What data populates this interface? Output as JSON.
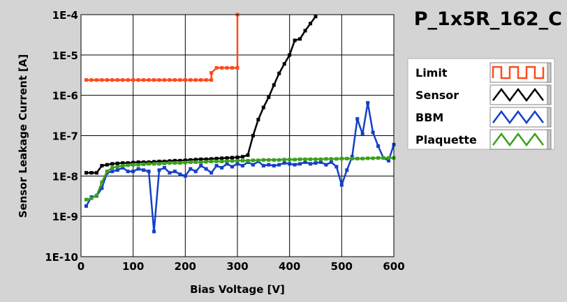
{
  "window": {
    "title": "P_1x5R_162_C"
  },
  "colors": {
    "background": "#d4d4d4",
    "plot_background": "#ffffff",
    "grid": "#000000",
    "limit": "#ff4a1c",
    "sensor": "#000000",
    "bbm": "#1440c8",
    "plaquette": "#3ca01c"
  },
  "chart_data": {
    "type": "line",
    "title": "P_1x5R_162_C",
    "xlabel": "Bias Voltage [V]",
    "ylabel": "Sensor Leakage Current [A]",
    "xlim": [
      0,
      600
    ],
    "ylim": [
      1e-10,
      0.0001
    ],
    "yscale": "log",
    "grid": true,
    "legend_position": "right",
    "x_ticks": [
      0,
      100,
      200,
      300,
      400,
      500,
      600
    ],
    "x_tick_labels": [
      "0",
      "100",
      "200",
      "300",
      "400",
      "500",
      "600"
    ],
    "y_ticks": [
      1e-10,
      1e-09,
      1e-08,
      1e-07,
      1e-06,
      1e-05,
      0.0001
    ],
    "y_tick_labels": [
      "1E-10",
      "1E-9",
      "1E-8",
      "1E-7",
      "1E-6",
      "1E-5",
      "1E-4"
    ],
    "series": [
      {
        "name": "Limit",
        "color_key": "limit",
        "icon": "square-wave-icon",
        "x": [
          10,
          20,
          30,
          40,
          50,
          60,
          70,
          80,
          90,
          100,
          110,
          120,
          130,
          140,
          150,
          160,
          170,
          180,
          190,
          200,
          210,
          220,
          230,
          240,
          250,
          250,
          260,
          270,
          280,
          290,
          300,
          300
        ],
        "y": [
          2.4e-06,
          2.4e-06,
          2.4e-06,
          2.4e-06,
          2.4e-06,
          2.4e-06,
          2.4e-06,
          2.4e-06,
          2.4e-06,
          2.4e-06,
          2.4e-06,
          2.4e-06,
          2.4e-06,
          2.4e-06,
          2.4e-06,
          2.4e-06,
          2.4e-06,
          2.4e-06,
          2.4e-06,
          2.4e-06,
          2.4e-06,
          2.4e-06,
          2.4e-06,
          2.4e-06,
          2.4e-06,
          3.6e-06,
          4.8e-06,
          4.8e-06,
          4.8e-06,
          4.8e-06,
          4.8e-06,
          0.0001
        ]
      },
      {
        "name": "Sensor",
        "color_key": "sensor",
        "icon": "triangle-wave-icon",
        "x": [
          10,
          20,
          30,
          40,
          50,
          60,
          70,
          80,
          90,
          100,
          110,
          120,
          130,
          140,
          150,
          160,
          170,
          180,
          190,
          200,
          210,
          220,
          230,
          240,
          250,
          260,
          270,
          280,
          290,
          300,
          310,
          320,
          330,
          340,
          350,
          360,
          370,
          380,
          390,
          400,
          410,
          420,
          430,
          440,
          450
        ],
        "y": [
          1.2e-08,
          1.2e-08,
          1.2e-08,
          1.8e-08,
          1.9e-08,
          2e-08,
          2.05e-08,
          2.1e-08,
          2.1e-08,
          2.15e-08,
          2.2e-08,
          2.2e-08,
          2.2e-08,
          2.25e-08,
          2.3e-08,
          2.3e-08,
          2.35e-08,
          2.4e-08,
          2.4e-08,
          2.45e-08,
          2.5e-08,
          2.55e-08,
          2.6e-08,
          2.6e-08,
          2.65e-08,
          2.7e-08,
          2.75e-08,
          2.8e-08,
          2.85e-08,
          2.9e-08,
          3e-08,
          3.3e-08,
          1e-07,
          2.5e-07,
          5e-07,
          9e-07,
          1.8e-06,
          3.5e-06,
          6e-06,
          1e-05,
          2.3e-05,
          2.5e-05,
          4e-05,
          6e-05,
          9e-05
        ]
      },
      {
        "name": "BBM",
        "color_key": "bbm",
        "icon": "triangle-wave-icon",
        "x": [
          10,
          20,
          30,
          40,
          50,
          60,
          70,
          80,
          90,
          100,
          110,
          120,
          130,
          140,
          150,
          160,
          170,
          180,
          190,
          200,
          210,
          220,
          230,
          240,
          250,
          260,
          270,
          280,
          290,
          300,
          310,
          320,
          330,
          340,
          350,
          360,
          370,
          380,
          390,
          400,
          410,
          420,
          430,
          440,
          450,
          460,
          470,
          480,
          490,
          500,
          510,
          520,
          530,
          540,
          550,
          560,
          570,
          580,
          590,
          600
        ],
        "y": [
          1.8e-09,
          3e-09,
          3.2e-09,
          5e-09,
          1.2e-08,
          1.3e-08,
          1.4e-08,
          1.6e-08,
          1.3e-08,
          1.3e-08,
          1.5e-08,
          1.4e-08,
          1.3e-08,
          4.2e-10,
          1.4e-08,
          1.6e-08,
          1.2e-08,
          1.3e-08,
          1.1e-08,
          1e-08,
          1.5e-08,
          1.3e-08,
          1.8e-08,
          1.5e-08,
          1.2e-08,
          1.8e-08,
          1.6e-08,
          2e-08,
          1.7e-08,
          2e-08,
          1.8e-08,
          2.2e-08,
          1.9e-08,
          2.3e-08,
          1.8e-08,
          1.9e-08,
          1.8e-08,
          1.9e-08,
          2.1e-08,
          2e-08,
          1.9e-08,
          2e-08,
          2.2e-08,
          2e-08,
          2.1e-08,
          2.2e-08,
          1.9e-08,
          2.2e-08,
          1.7e-08,
          6e-09,
          1.4e-08,
          3e-08,
          2.6e-07,
          1.1e-07,
          6.5e-07,
          1.2e-07,
          5.5e-08,
          2.8e-08,
          2.4e-08,
          6e-08
        ]
      },
      {
        "name": "Plaquette",
        "color_key": "plaquette",
        "icon": "triangle-wave-icon",
        "x": [
          10,
          20,
          30,
          40,
          50,
          60,
          70,
          80,
          90,
          100,
          110,
          120,
          130,
          140,
          150,
          160,
          170,
          180,
          190,
          200,
          210,
          220,
          230,
          240,
          250,
          260,
          270,
          280,
          290,
          300,
          310,
          320,
          330,
          340,
          350,
          360,
          370,
          380,
          390,
          400,
          410,
          420,
          430,
          440,
          450,
          460,
          470,
          480,
          490,
          500,
          510,
          520,
          530,
          540,
          550,
          560,
          570,
          580,
          590,
          600
        ],
        "y": [
          2.6e-09,
          2.8e-09,
          3.3e-09,
          7e-09,
          1.3e-08,
          1.6e-08,
          1.7e-08,
          1.8e-08,
          1.85e-08,
          1.9e-08,
          1.9e-08,
          1.95e-08,
          2e-08,
          2e-08,
          2e-08,
          2.05e-08,
          2.1e-08,
          2.1e-08,
          2.1e-08,
          2.15e-08,
          2.2e-08,
          2.2e-08,
          2.2e-08,
          2.25e-08,
          2.3e-08,
          2.3e-08,
          2.3e-08,
          2.35e-08,
          2.35e-08,
          2.4e-08,
          2.4e-08,
          2.4e-08,
          2.45e-08,
          2.45e-08,
          2.5e-08,
          2.5e-08,
          2.5e-08,
          2.5e-08,
          2.55e-08,
          2.55e-08,
          2.55e-08,
          2.6e-08,
          2.6e-08,
          2.6e-08,
          2.6e-08,
          2.6e-08,
          2.65e-08,
          2.65e-08,
          2.65e-08,
          2.7e-08,
          2.7e-08,
          2.7e-08,
          2.7e-08,
          2.7e-08,
          2.75e-08,
          2.75e-08,
          2.8e-08,
          2.8e-08,
          2.8e-08,
          2.8e-08
        ]
      }
    ]
  }
}
